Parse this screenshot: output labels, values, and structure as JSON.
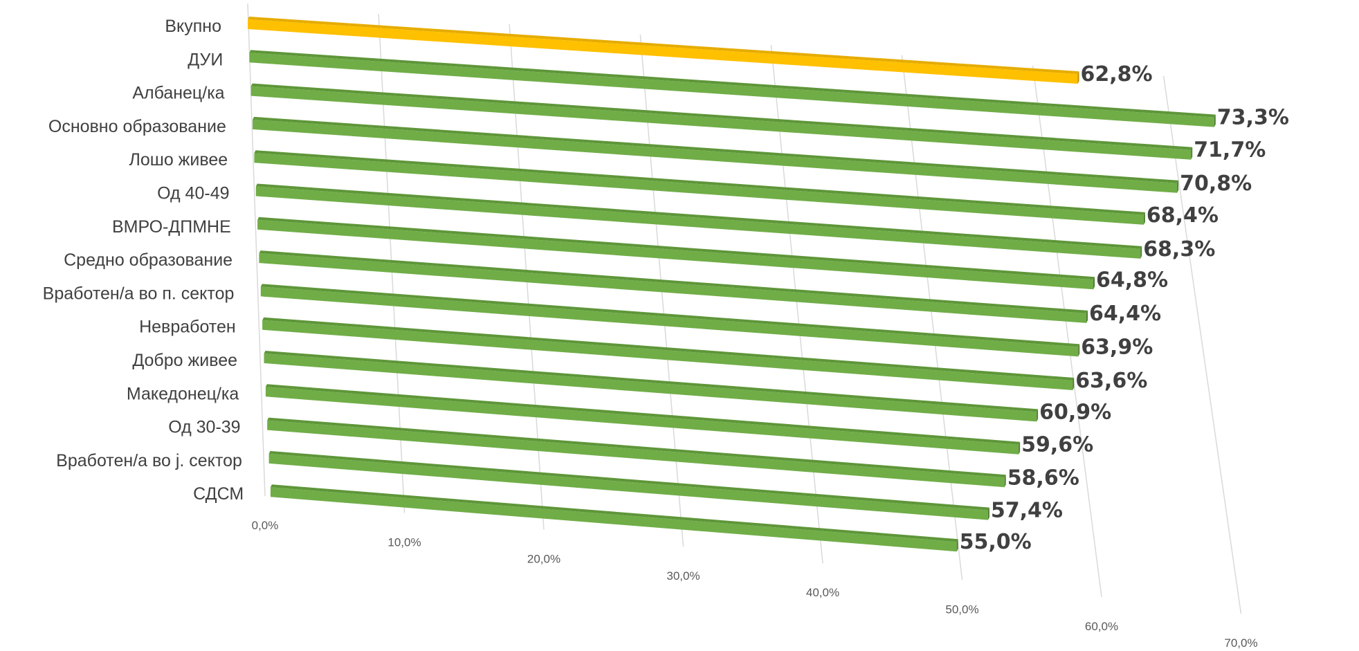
{
  "chart_data": {
    "type": "bar",
    "orientation": "horizontal",
    "style": "3d-perspective",
    "categories": [
      "Вкупно",
      "ДУИ",
      "Албанец/ка",
      "Основно образование",
      "Лошо живее",
      "Од 40-49",
      "ВМРО-ДПМНЕ",
      "Средно образование",
      "Вработен/а во п. сектор",
      "Невработен",
      "Добро живее",
      "Македонец/ка",
      "Од 30-39",
      "Вработен/а во ј. сектор",
      "СДСМ"
    ],
    "values": [
      62.8,
      73.3,
      71.7,
      70.8,
      68.4,
      68.3,
      64.8,
      64.4,
      63.9,
      63.6,
      60.9,
      59.6,
      58.6,
      57.4,
      55.0
    ],
    "data_labels": [
      "62,8%",
      "73,3%",
      "71,7%",
      "70,8%",
      "68,4%",
      "68,3%",
      "64,8%",
      "64,4%",
      "63,9%",
      "63,6%",
      "60,9%",
      "59,6%",
      "58,6%",
      "57,4%",
      "55,0%"
    ],
    "highlight_index": 0,
    "colors": {
      "highlight": "#FFC000",
      "bars": "#70AD47",
      "gridlines": "#D9D9D9"
    },
    "x_ticks": [
      "0,0%",
      "10,0%",
      "20,0%",
      "30,0%",
      "40,0%",
      "50,0%",
      "60,0%",
      "70,0%"
    ],
    "xlim": [
      0,
      70
    ],
    "grid": true,
    "legend": "none"
  }
}
